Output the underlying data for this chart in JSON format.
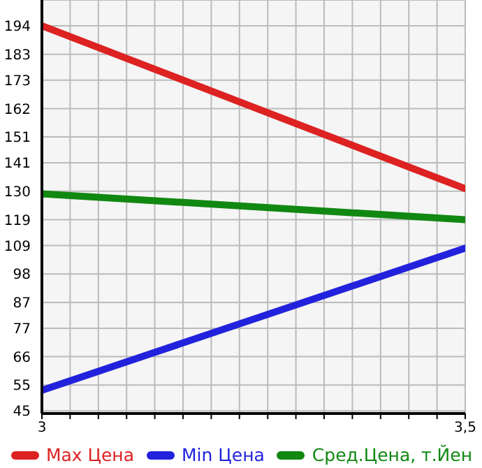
{
  "chart_data": {
    "type": "line",
    "x": [
      3,
      3.5
    ],
    "xlim": [
      3,
      3.5
    ],
    "xticks": [
      3,
      {
        "value": 3.0333,
        "label": null
      },
      {
        "value": 3.0667,
        "label": null
      },
      {
        "value": 3.1,
        "label": null
      },
      {
        "value": 3.1333,
        "label": null
      },
      {
        "value": 3.1667,
        "label": null
      },
      {
        "value": 3.2,
        "label": null
      },
      {
        "value": 3.2333,
        "label": null
      },
      {
        "value": 3.2667,
        "label": null
      },
      {
        "value": 3.3,
        "label": null
      },
      {
        "value": 3.3333,
        "label": null
      },
      {
        "value": 3.3667,
        "label": null
      },
      {
        "value": 3.4,
        "label": null
      },
      {
        "value": 3.4333,
        "label": null
      },
      {
        "value": 3.4667,
        "label": null
      },
      {
        "value": 3.5,
        "label": "3,5"
      }
    ],
    "ylim": [
      44,
      204
    ],
    "yticks": [
      45,
      55,
      66,
      77,
      87,
      98,
      109,
      119,
      130,
      141,
      151,
      162,
      173,
      183,
      194
    ],
    "series": [
      {
        "name": "Max Цена",
        "color": "#dd2222",
        "values": [
          194,
          131
        ]
      },
      {
        "name": "Min Цена",
        "color": "#2222dd",
        "values": [
          53,
          108
        ]
      },
      {
        "name": "Сред.Цена, т.Йен",
        "color": "#118811",
        "values": [
          129,
          119
        ]
      }
    ],
    "grid": true,
    "legend": "bottom",
    "marker": "none",
    "line_style": "solid"
  }
}
